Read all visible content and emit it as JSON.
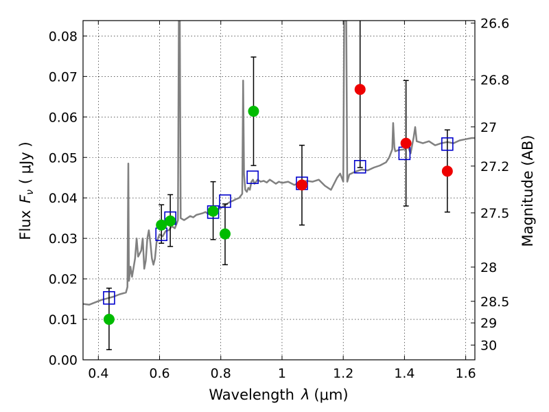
{
  "chart_data": {
    "type": "scatter",
    "xlabel_text": "Wavelength",
    "xlabel_symbol": "λ",
    "xlabel_unit": "(μm)",
    "ylabel_text": "Flux",
    "ylabel_symbol": "F",
    "ylabel_subscript": "ν",
    "ylabel_unit": "( μJy )",
    "y2label": "Magnitude (AB)",
    "xlim": [
      0.35,
      1.63
    ],
    "ylim": [
      0.0,
      0.0838
    ],
    "grid": true,
    "x_ticks": [
      {
        "value": 0.4,
        "label": "0.4"
      },
      {
        "value": 0.6,
        "label": "0.6"
      },
      {
        "value": 0.8,
        "label": "0.8"
      },
      {
        "value": 1.0,
        "label": "1"
      },
      {
        "value": 1.2,
        "label": "1.2"
      },
      {
        "value": 1.4,
        "label": "1.4"
      },
      {
        "value": 1.6,
        "label": "1.6"
      }
    ],
    "y_ticks": [
      {
        "value": 0.0,
        "label": "0.00"
      },
      {
        "value": 0.01,
        "label": "0.01"
      },
      {
        "value": 0.02,
        "label": "0.02"
      },
      {
        "value": 0.03,
        "label": "0.03"
      },
      {
        "value": 0.04,
        "label": "0.04"
      },
      {
        "value": 0.05,
        "label": "0.05"
      },
      {
        "value": 0.06,
        "label": "0.06"
      },
      {
        "value": 0.07,
        "label": "0.07"
      },
      {
        "value": 0.08,
        "label": "0.08"
      }
    ],
    "y2_ticks": [
      {
        "value": 26.6,
        "label": "26.6"
      },
      {
        "value": 26.8,
        "label": "26.8"
      },
      {
        "value": 27.0,
        "label": "27"
      },
      {
        "value": 27.2,
        "label": "27.2"
      },
      {
        "value": 27.5,
        "label": "27.5"
      },
      {
        "value": 28.0,
        "label": "28"
      },
      {
        "value": 28.5,
        "label": "28.5"
      },
      {
        "value": 29.0,
        "label": "29"
      },
      {
        "value": 30.0,
        "label": "30"
      }
    ],
    "colors": {
      "spectrum": "#808080",
      "model": "#0000cc",
      "green": "#00bb00",
      "red": "#ee0000",
      "errorbar": "#000000"
    },
    "spectrum": [
      [
        0.35,
        0.0138
      ],
      [
        0.37,
        0.0136
      ],
      [
        0.39,
        0.0142
      ],
      [
        0.41,
        0.0148
      ],
      [
        0.43,
        0.0152
      ],
      [
        0.45,
        0.0156
      ],
      [
        0.47,
        0.0162
      ],
      [
        0.49,
        0.0166
      ],
      [
        0.495,
        0.018
      ],
      [
        0.498,
        0.0485
      ],
      [
        0.5,
        0.0195
      ],
      [
        0.505,
        0.023
      ],
      [
        0.51,
        0.0205
      ],
      [
        0.52,
        0.025
      ],
      [
        0.525,
        0.03
      ],
      [
        0.53,
        0.0255
      ],
      [
        0.54,
        0.027
      ],
      [
        0.545,
        0.03
      ],
      [
        0.55,
        0.0225
      ],
      [
        0.555,
        0.0245
      ],
      [
        0.56,
        0.03
      ],
      [
        0.565,
        0.032
      ],
      [
        0.57,
        0.029
      ],
      [
        0.575,
        0.025
      ],
      [
        0.58,
        0.0235
      ],
      [
        0.585,
        0.025
      ],
      [
        0.59,
        0.029
      ],
      [
        0.6,
        0.031
      ],
      [
        0.61,
        0.0305
      ],
      [
        0.62,
        0.0318
      ],
      [
        0.63,
        0.032
      ],
      [
        0.64,
        0.033
      ],
      [
        0.65,
        0.0325
      ],
      [
        0.655,
        0.0335
      ],
      [
        0.66,
        0.0345
      ],
      [
        0.663,
        0.0838
      ],
      [
        0.666,
        0.0838
      ],
      [
        0.669,
        0.035
      ],
      [
        0.68,
        0.0345
      ],
      [
        0.69,
        0.035
      ],
      [
        0.7,
        0.0355
      ],
      [
        0.71,
        0.0352
      ],
      [
        0.72,
        0.0358
      ],
      [
        0.73,
        0.036
      ],
      [
        0.74,
        0.0362
      ],
      [
        0.75,
        0.0365
      ],
      [
        0.76,
        0.036
      ],
      [
        0.77,
        0.0368
      ],
      [
        0.78,
        0.037
      ],
      [
        0.79,
        0.0372
      ],
      [
        0.8,
        0.0375
      ],
      [
        0.81,
        0.038
      ],
      [
        0.82,
        0.0385
      ],
      [
        0.83,
        0.039
      ],
      [
        0.84,
        0.0393
      ],
      [
        0.85,
        0.0397
      ],
      [
        0.86,
        0.04
      ],
      [
        0.87,
        0.041
      ],
      [
        0.873,
        0.069
      ],
      [
        0.876,
        0.046
      ],
      [
        0.88,
        0.042
      ],
      [
        0.885,
        0.0415
      ],
      [
        0.89,
        0.0425
      ],
      [
        0.895,
        0.042
      ],
      [
        0.9,
        0.044
      ],
      [
        0.905,
        0.0445
      ],
      [
        0.91,
        0.0435
      ],
      [
        0.92,
        0.0445
      ],
      [
        0.93,
        0.044
      ],
      [
        0.94,
        0.0442
      ],
      [
        0.95,
        0.0438
      ],
      [
        0.96,
        0.0445
      ],
      [
        0.97,
        0.044
      ],
      [
        0.98,
        0.0435
      ],
      [
        0.99,
        0.044
      ],
      [
        1.0,
        0.0437
      ],
      [
        1.02,
        0.044
      ],
      [
        1.04,
        0.0432
      ],
      [
        1.06,
        0.0438
      ],
      [
        1.08,
        0.0442
      ],
      [
        1.1,
        0.044
      ],
      [
        1.12,
        0.0445
      ],
      [
        1.14,
        0.043
      ],
      [
        1.16,
        0.042
      ],
      [
        1.18,
        0.045
      ],
      [
        1.19,
        0.046
      ],
      [
        1.2,
        0.044
      ],
      [
        1.203,
        0.0838
      ],
      [
        1.21,
        0.0838
      ],
      [
        1.213,
        0.044
      ],
      [
        1.22,
        0.0458
      ],
      [
        1.24,
        0.0465
      ],
      [
        1.26,
        0.047
      ],
      [
        1.28,
        0.0468
      ],
      [
        1.3,
        0.0475
      ],
      [
        1.32,
        0.048
      ],
      [
        1.34,
        0.0488
      ],
      [
        1.35,
        0.05
      ],
      [
        1.36,
        0.052
      ],
      [
        1.363,
        0.0585
      ],
      [
        1.367,
        0.0525
      ],
      [
        1.37,
        0.0515
      ],
      [
        1.38,
        0.0518
      ],
      [
        1.4,
        0.052
      ],
      [
        1.41,
        0.053
      ],
      [
        1.42,
        0.051
      ],
      [
        1.43,
        0.055
      ],
      [
        1.435,
        0.0575
      ],
      [
        1.44,
        0.054
      ],
      [
        1.46,
        0.0535
      ],
      [
        1.48,
        0.054
      ],
      [
        1.5,
        0.053
      ],
      [
        1.52,
        0.0535
      ],
      [
        1.54,
        0.0538
      ],
      [
        1.56,
        0.0535
      ],
      [
        1.58,
        0.0542
      ],
      [
        1.6,
        0.0545
      ],
      [
        1.62,
        0.0548
      ],
      [
        1.63,
        0.0548
      ]
    ],
    "model_points": [
      {
        "x": 0.435,
        "y": 0.0153
      },
      {
        "x": 0.606,
        "y": 0.031
      },
      {
        "x": 0.635,
        "y": 0.035
      },
      {
        "x": 0.775,
        "y": 0.0365
      },
      {
        "x": 0.814,
        "y": 0.0392
      },
      {
        "x": 0.904,
        "y": 0.0451
      },
      {
        "x": 1.065,
        "y": 0.0436
      },
      {
        "x": 1.255,
        "y": 0.0477
      },
      {
        "x": 1.4,
        "y": 0.051
      },
      {
        "x": 1.54,
        "y": 0.0533
      }
    ],
    "green_points": [
      {
        "x": 0.435,
        "y": 0.01,
        "yerr_low": 0.0025,
        "yerr_high": 0.0177
      },
      {
        "x": 0.606,
        "y": 0.0333,
        "yerr_low": 0.0288,
        "yerr_high": 0.0383
      },
      {
        "x": 0.635,
        "y": 0.0343,
        "yerr_low": 0.028,
        "yerr_high": 0.0408
      },
      {
        "x": 0.775,
        "y": 0.0367,
        "yerr_low": 0.0297,
        "yerr_high": 0.044
      },
      {
        "x": 0.814,
        "y": 0.0311,
        "yerr_low": 0.0235,
        "yerr_high": 0.0385
      },
      {
        "x": 0.907,
        "y": 0.0614,
        "yerr_low": 0.048,
        "yerr_high": 0.0748
      }
    ],
    "red_points": [
      {
        "x": 1.065,
        "y": 0.0432,
        "yerr_low": 0.0333,
        "yerr_high": 0.053
      },
      {
        "x": 1.255,
        "y": 0.0668,
        "yerr_low": 0.0475,
        "yerr_high": 0.0838
      },
      {
        "x": 1.405,
        "y": 0.0535,
        "yerr_low": 0.038,
        "yerr_high": 0.069
      },
      {
        "x": 1.54,
        "y": 0.0466,
        "yerr_low": 0.0365,
        "yerr_high": 0.0568
      }
    ]
  }
}
